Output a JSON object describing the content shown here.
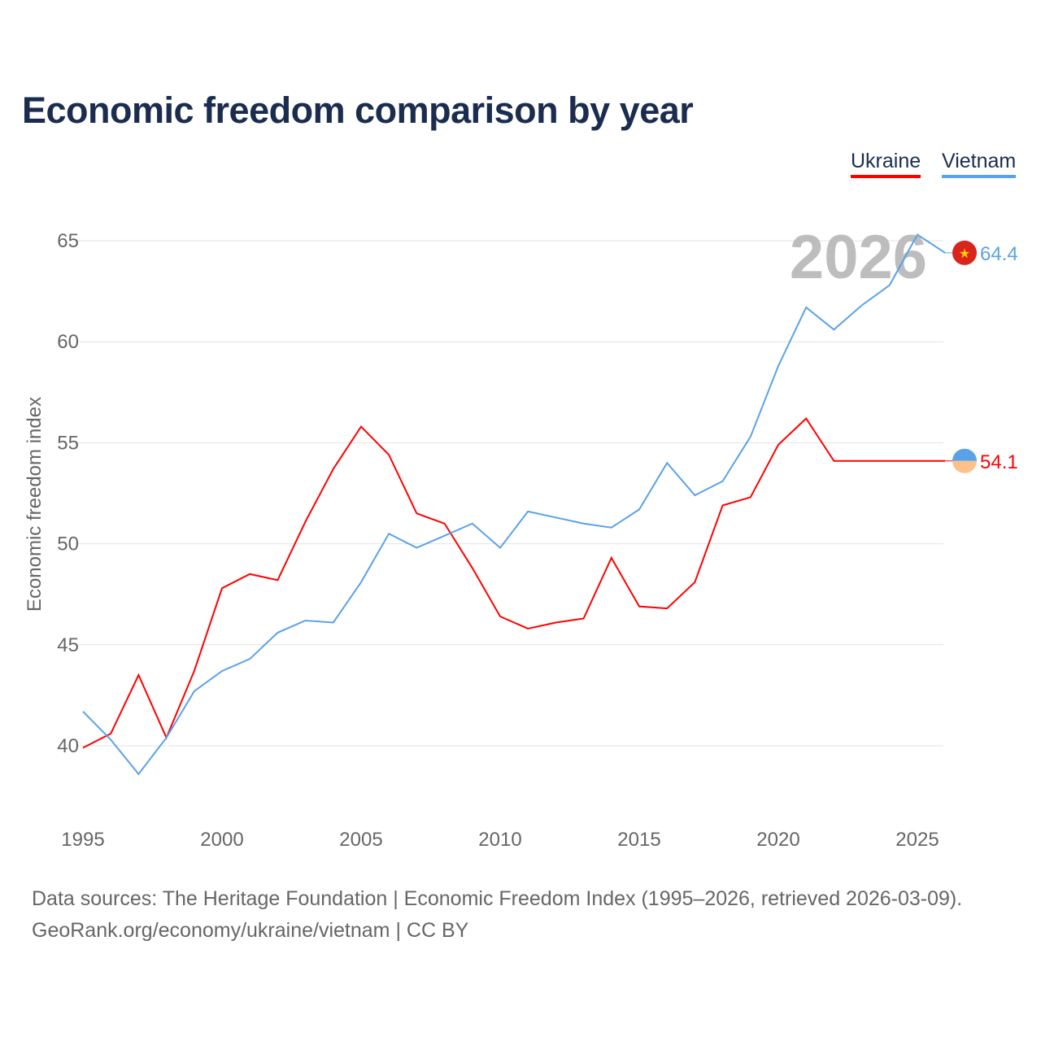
{
  "title": "Economic freedom comparison by year",
  "footer": {
    "line1": "Data sources: The Heritage Foundation | Economic Freedom Index (1995–2026, retrieved 2026-03-09).",
    "line2": "GeoRank.org/economy/ukraine/vietnam | CC BY"
  },
  "chart_data": {
    "type": "line",
    "title": "Economic freedom comparison by year",
    "xlabel": "",
    "ylabel": "Economic freedom index",
    "year_label": "2026",
    "x": [
      1995,
      1996,
      1997,
      1998,
      1999,
      2000,
      2001,
      2002,
      2003,
      2004,
      2005,
      2006,
      2007,
      2008,
      2009,
      2010,
      2011,
      2012,
      2013,
      2014,
      2015,
      2016,
      2017,
      2018,
      2019,
      2020,
      2021,
      2022,
      2023,
      2024,
      2025,
      2026
    ],
    "xticks": [
      "1995",
      "2000",
      "2005",
      "2010",
      "2015",
      "2020",
      "2025"
    ],
    "yticks": [
      "40",
      "45",
      "50",
      "55",
      "60",
      "65"
    ],
    "ylim": [
      36.5,
      66
    ],
    "xlim": [
      1995,
      2026
    ],
    "grid": true,
    "legend_placement": "top-right",
    "series": [
      {
        "name": "Ukraine",
        "color": "#ff0000",
        "end_label": "54.1",
        "flag": "ukraine-flag",
        "values": [
          39.9,
          40.6,
          43.5,
          40.4,
          43.7,
          47.8,
          48.5,
          48.2,
          51.1,
          53.7,
          55.8,
          54.4,
          51.5,
          51.0,
          48.8,
          46.4,
          45.8,
          46.1,
          46.3,
          49.3,
          46.9,
          46.8,
          48.1,
          51.9,
          52.3,
          54.9,
          56.2,
          54.1,
          54.1,
          54.1,
          54.1,
          54.1
        ]
      },
      {
        "name": "Vietnam",
        "color": "#5aa2e8",
        "end_label": "64.4",
        "flag": "vietnam-flag",
        "values": [
          41.7,
          40.3,
          38.6,
          40.4,
          42.7,
          43.7,
          44.3,
          45.6,
          46.2,
          46.1,
          48.1,
          50.5,
          49.8,
          50.4,
          51.0,
          49.8,
          51.6,
          51.3,
          51.0,
          50.8,
          51.7,
          54.0,
          52.4,
          53.1,
          55.3,
          58.8,
          61.7,
          60.6,
          61.8,
          62.8,
          65.3,
          64.4
        ]
      }
    ]
  }
}
